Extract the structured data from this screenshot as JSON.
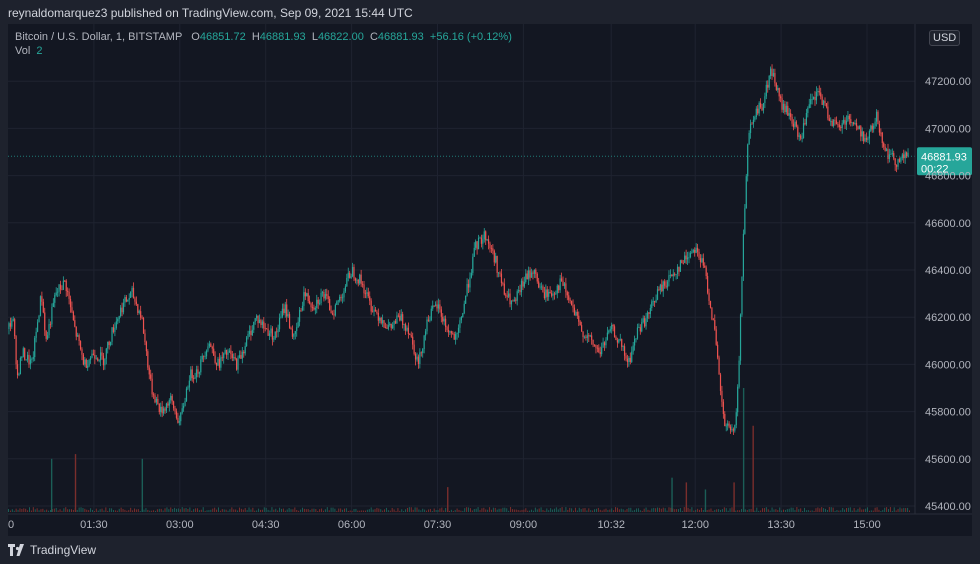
{
  "header": {
    "text": "reynaldomarquez3 published on TradingView.com, Sep 09, 2021 15:44 UTC"
  },
  "footer": {
    "logo_icon": "tradingview-logo-icon",
    "text": "TradingView"
  },
  "legend": {
    "symbol": "Bitcoin / U.S. Dollar, 1, BITSTAMP",
    "o_label": "O",
    "o": "46851.72",
    "h_label": "H",
    "h": "46881.93",
    "l_label": "L",
    "l": "46822.00",
    "c_label": "C",
    "c": "46881.93",
    "change": "+56.16 (+0.12%)",
    "vol_label": "Vol",
    "vol": "2"
  },
  "price_axis": {
    "currency": "USD",
    "last_price": "46881.93",
    "countdown": "00:22"
  },
  "colors": {
    "up": "#26a69a",
    "down": "#ef5350",
    "background": "#131722",
    "grid": "#1f2330",
    "text": "#b2b5be"
  },
  "chart_data": {
    "type": "candlestick",
    "symbol": "Bitcoin / U.S. Dollar",
    "interval": "1",
    "exchange": "BITSTAMP",
    "ylim": [
      45400,
      47400
    ],
    "yticks": [
      45400,
      45600,
      45800,
      46000,
      46200,
      46400,
      46600,
      46800,
      47000,
      47200
    ],
    "xticks": [
      "01:30",
      "03:00",
      "04:30",
      "06:00",
      "07:30",
      "09:00",
      "10:32",
      "12:00",
      "13:30",
      "15:00"
    ],
    "last_price": 46881.93,
    "price_path": [
      [
        "00:00",
        46150
      ],
      [
        "00:05",
        46200
      ],
      [
        "00:10",
        45950
      ],
      [
        "00:15",
        46050
      ],
      [
        "00:25",
        46000
      ],
      [
        "00:35",
        46300
      ],
      [
        "00:40",
        46100
      ],
      [
        "00:50",
        46300
      ],
      [
        "01:00",
        46350
      ],
      [
        "01:10",
        46150
      ],
      [
        "01:20",
        46000
      ],
      [
        "01:30",
        46050
      ],
      [
        "01:40",
        46020
      ],
      [
        "01:50",
        46150
      ],
      [
        "02:00",
        46250
      ],
      [
        "02:10",
        46300
      ],
      [
        "02:20",
        46200
      ],
      [
        "02:30",
        45900
      ],
      [
        "02:40",
        45800
      ],
      [
        "02:50",
        45850
      ],
      [
        "03:00",
        45750
      ],
      [
        "03:10",
        45950
      ],
      [
        "03:20",
        45980
      ],
      [
        "03:30",
        46100
      ],
      [
        "03:40",
        46000
      ],
      [
        "03:50",
        46050
      ],
      [
        "04:00",
        46000
      ],
      [
        "04:10",
        46100
      ],
      [
        "04:20",
        46200
      ],
      [
        "04:30",
        46150
      ],
      [
        "04:40",
        46120
      ],
      [
        "04:50",
        46250
      ],
      [
        "05:00",
        46100
      ],
      [
        "05:10",
        46300
      ],
      [
        "05:20",
        46250
      ],
      [
        "05:30",
        46300
      ],
      [
        "05:40",
        46220
      ],
      [
        "05:50",
        46300
      ],
      [
        "06:00",
        46400
      ],
      [
        "06:10",
        46350
      ],
      [
        "06:20",
        46250
      ],
      [
        "06:30",
        46200
      ],
      [
        "06:40",
        46150
      ],
      [
        "06:50",
        46200
      ],
      [
        "07:00",
        46150
      ],
      [
        "07:10",
        46000
      ],
      [
        "07:20",
        46200
      ],
      [
        "07:30",
        46250
      ],
      [
        "07:40",
        46150
      ],
      [
        "07:50",
        46100
      ],
      [
        "08:00",
        46300
      ],
      [
        "08:10",
        46500
      ],
      [
        "08:20",
        46550
      ],
      [
        "08:30",
        46450
      ],
      [
        "08:40",
        46300
      ],
      [
        "08:50",
        46250
      ],
      [
        "09:00",
        46350
      ],
      [
        "09:10",
        46400
      ],
      [
        "09:20",
        46300
      ],
      [
        "09:30",
        46300
      ],
      [
        "09:40",
        46350
      ],
      [
        "09:50",
        46250
      ],
      [
        "10:00",
        46150
      ],
      [
        "10:10",
        46100
      ],
      [
        "10:20",
        46050
      ],
      [
        "10:32",
        46150
      ],
      [
        "10:40",
        46100
      ],
      [
        "10:50",
        46000
      ],
      [
        "11:00",
        46150
      ],
      [
        "11:10",
        46200
      ],
      [
        "11:20",
        46300
      ],
      [
        "11:30",
        46350
      ],
      [
        "11:40",
        46400
      ],
      [
        "11:50",
        46450
      ],
      [
        "12:00",
        46500
      ],
      [
        "12:10",
        46400
      ],
      [
        "12:20",
        46150
      ],
      [
        "12:30",
        45750
      ],
      [
        "12:40",
        45700
      ],
      [
        "12:45",
        45900
      ],
      [
        "12:50",
        46500
      ],
      [
        "12:55",
        46950
      ],
      [
        "13:00",
        47050
      ],
      [
        "13:10",
        47100
      ],
      [
        "13:20",
        47250
      ],
      [
        "13:30",
        47100
      ],
      [
        "13:40",
        47050
      ],
      [
        "13:50",
        46950
      ],
      [
        "14:00",
        47100
      ],
      [
        "14:10",
        47150
      ],
      [
        "14:20",
        47050
      ],
      [
        "14:30",
        47000
      ],
      [
        "14:40",
        47050
      ],
      [
        "14:50",
        47000
      ],
      [
        "15:00",
        46950
      ],
      [
        "15:10",
        47050
      ],
      [
        "15:20",
        46900
      ],
      [
        "15:30",
        46860
      ],
      [
        "15:40",
        46880
      ],
      [
        "15:44",
        46881.93
      ]
    ],
    "volume_spikes": [
      [
        "00:45",
        45600
      ],
      [
        "01:10",
        45620
      ],
      [
        "02:20",
        45600
      ],
      [
        "07:40",
        45480
      ],
      [
        "11:35",
        45520
      ],
      [
        "11:50",
        45500
      ],
      [
        "12:10",
        45470
      ],
      [
        "12:40",
        45500
      ],
      [
        "12:50",
        45900
      ],
      [
        "13:00",
        45740
      ]
    ]
  }
}
